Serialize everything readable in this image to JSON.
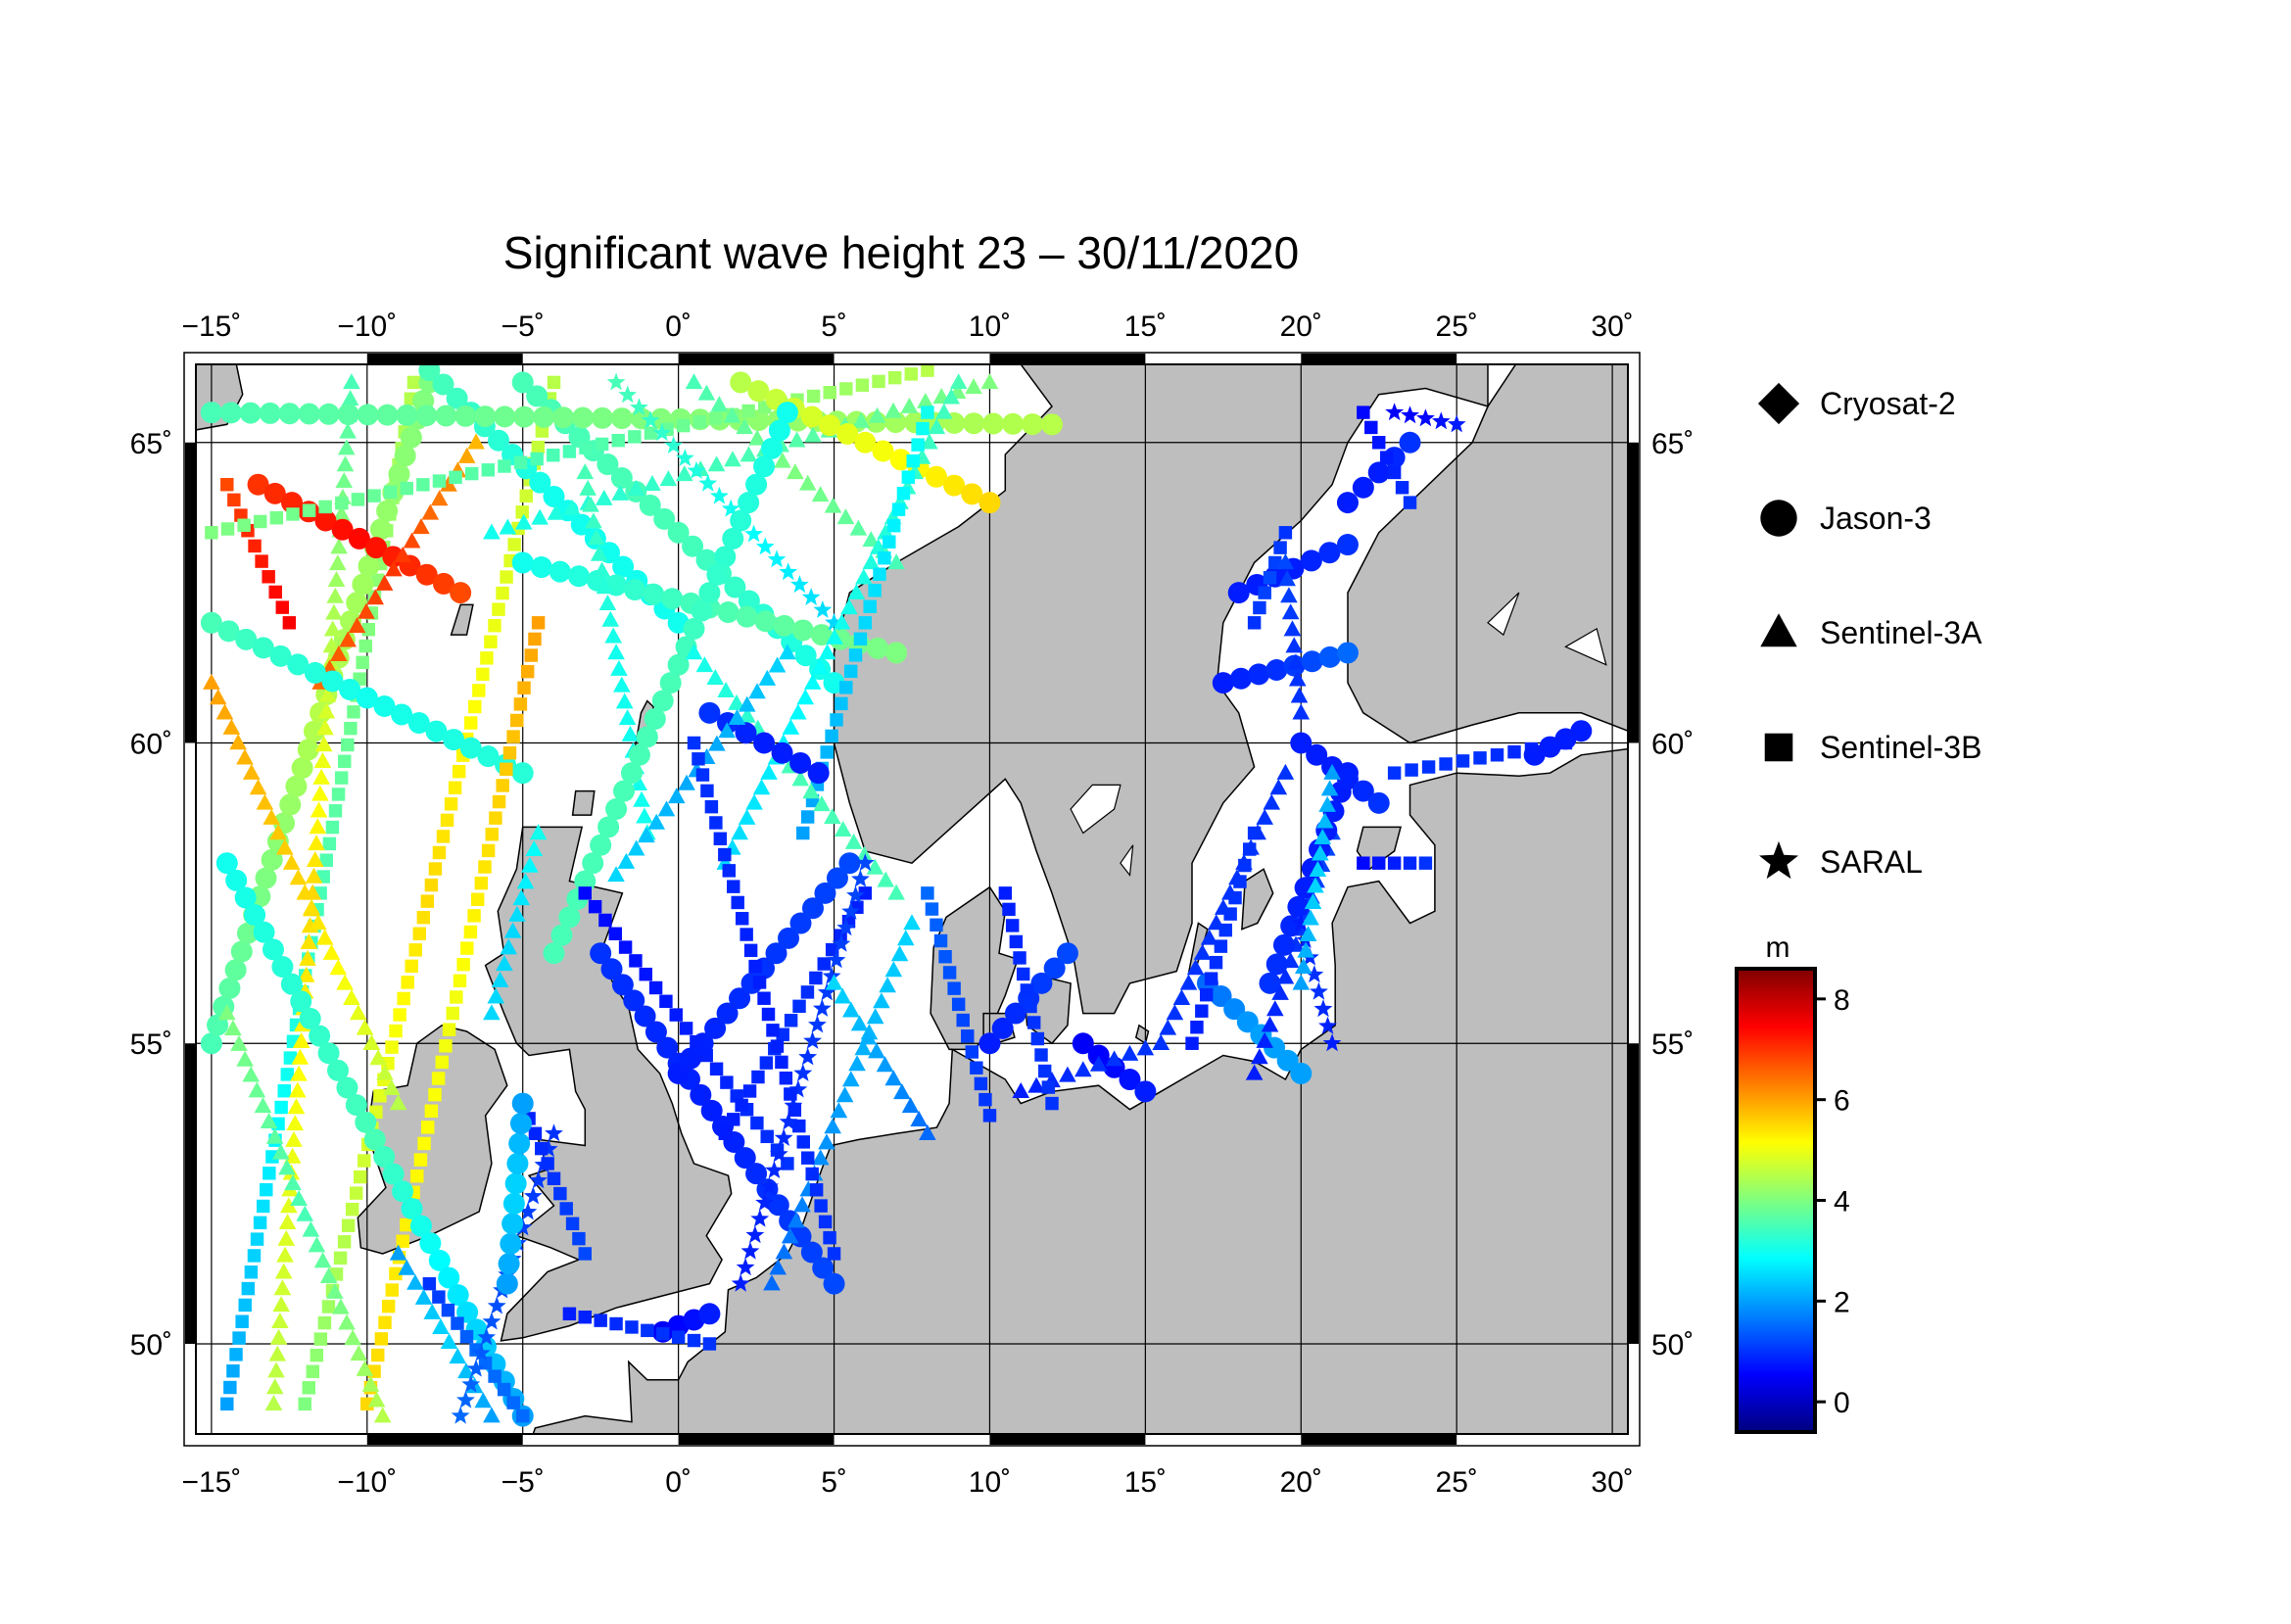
{
  "title": "Significant wave height 23 – 30/11/2020",
  "map": {
    "lon_range": [
      -15.5,
      30.5
    ],
    "lat_range": [
      48.5,
      66.3
    ],
    "lon_ticks": [
      -15,
      -10,
      -5,
      0,
      5,
      10,
      15,
      20,
      25,
      30
    ],
    "lon_tick_labels": [
      "−15˚",
      "−10˚",
      "−5˚",
      "0˚",
      "5˚",
      "10˚",
      "15˚",
      "20˚",
      "25˚",
      "30˚"
    ],
    "lat_ticks": [
      50,
      55,
      60,
      65
    ],
    "lat_tick_labels": [
      "50˚",
      "55˚",
      "60˚",
      "65˚"
    ],
    "land_color": "#bebebe",
    "water_color": "#ffffff"
  },
  "legend": {
    "items": [
      {
        "label": "Cryosat-2",
        "symbol": "diamond"
      },
      {
        "label": "Jason-3",
        "symbol": "circle"
      },
      {
        "label": "Sentinel-3A",
        "symbol": "triangle"
      },
      {
        "label": "Sentinel-3B",
        "symbol": "square"
      },
      {
        "label": "SARAL",
        "symbol": "star"
      }
    ]
  },
  "colorbar": {
    "unit": "m",
    "min": -0.6,
    "max": 8.6,
    "ticks": [
      0,
      2,
      4,
      6,
      8
    ],
    "tick_labels": [
      "0",
      "2",
      "4",
      "6",
      "8"
    ],
    "colors": [
      "#00007f",
      "#0000ff",
      "#007fff",
      "#00ffff",
      "#7fff7f",
      "#ffff00",
      "#ff7f00",
      "#ff0000",
      "#7f0000"
    ]
  },
  "chart_data": {
    "type": "scatter",
    "x_quantity": "longitude",
    "y_quantity": "latitude",
    "value_quantity": "significant wave height (m)",
    "tracks": [
      {
        "satellite": "Sentinel-3B",
        "start": [
          -14.5,
          49.0
        ],
        "end": [
          -8.5,
          66.0
        ],
        "hs": [
          2.0,
          3.5,
          4.5
        ]
      },
      {
        "satellite": "Jason-3",
        "start": [
          -15.0,
          55.0
        ],
        "end": [
          -8.0,
          66.0
        ],
        "hs": [
          3.5,
          4.5,
          4.0
        ]
      },
      {
        "satellite": "Sentinel-3A",
        "start": [
          -13.0,
          49.0
        ],
        "end": [
          -10.5,
          66.0
        ],
        "hs": [
          4.5,
          5.5,
          3.5
        ]
      },
      {
        "satellite": "Sentinel-3B",
        "start": [
          -12.0,
          49.0
        ],
        "end": [
          -4.0,
          66.0
        ],
        "hs": [
          4.0,
          5.5,
          4.5
        ]
      },
      {
        "satellite": "Sentinel-3B",
        "start": [
          -14.5,
          64.3
        ],
        "end": [
          -12.5,
          62.0
        ],
        "hs": [
          6.8,
          7.2,
          7.5
        ]
      },
      {
        "satellite": "Jason-3",
        "start": [
          -13.5,
          64.3
        ],
        "end": [
          -7.0,
          62.5
        ],
        "hs": [
          7.0,
          7.4,
          6.8
        ]
      },
      {
        "satellite": "Sentinel-3A",
        "start": [
          -11.5,
          61.0
        ],
        "end": [
          -6.5,
          65.0
        ],
        "hs": [
          6.5,
          7.0,
          5.8
        ]
      },
      {
        "satellite": "Sentinel-3A",
        "start": [
          -15.0,
          61.0
        ],
        "end": [
          -9.0,
          54.0
        ],
        "hs": [
          6.0,
          5.5,
          4.5
        ]
      },
      {
        "satellite": "Jason-3",
        "start": [
          -15.0,
          62.0
        ],
        "end": [
          -5.0,
          59.5
        ],
        "hs": [
          3.5,
          3.0,
          3.2
        ]
      },
      {
        "satellite": "Sentinel-3B",
        "start": [
          -10.0,
          49.0
        ],
        "end": [
          -4.5,
          62.0
        ],
        "hs": [
          5.5,
          5.0,
          6.0
        ]
      },
      {
        "satellite": "Jason-3",
        "start": [
          -14.5,
          58.0
        ],
        "end": [
          -5.0,
          48.8
        ],
        "hs": [
          3.0,
          3.5,
          2.0
        ]
      },
      {
        "satellite": "Sentinel-3A",
        "start": [
          -14.5,
          55.5
        ],
        "end": [
          -9.5,
          48.8
        ],
        "hs": [
          4.0,
          3.5,
          4.5
        ]
      },
      {
        "satellite": "Jason-3",
        "start": [
          -8.0,
          66.2
        ],
        "end": [
          0.0,
          62.0
        ],
        "hs": [
          3.5,
          3.0,
          3.0
        ]
      },
      {
        "satellite": "Jason-3",
        "start": [
          -5.0,
          66.0
        ],
        "end": [
          5.0,
          61.0
        ],
        "hs": [
          3.5,
          3.5,
          3.0
        ]
      },
      {
        "satellite": "Jason-3",
        "start": [
          -15.0,
          65.5
        ],
        "end": [
          12.0,
          65.3
        ],
        "hs": [
          3.5,
          4.0,
          4.5
        ]
      },
      {
        "satellite": "Sentinel-3B",
        "start": [
          -15.0,
          63.5
        ],
        "end": [
          8.0,
          66.2
        ],
        "hs": [
          4.0,
          3.5,
          4.5
        ]
      },
      {
        "satellite": "Sentinel-3A",
        "start": [
          -6.0,
          63.5
        ],
        "end": [
          10.0,
          66.0
        ],
        "hs": [
          3.0,
          3.5,
          4.0
        ]
      },
      {
        "satellite": "Jason-3",
        "start": [
          -5.0,
          63.0
        ],
        "end": [
          7.0,
          61.5
        ],
        "hs": [
          3.0,
          3.5,
          4.0
        ]
      },
      {
        "satellite": "SARAL",
        "start": [
          -2.0,
          66.0
        ],
        "end": [
          5.0,
          62.0
        ],
        "hs": [
          3.5,
          3.0,
          2.5
        ]
      },
      {
        "satellite": "Sentinel-3A",
        "start": [
          0.5,
          66.0
        ],
        "end": [
          7.0,
          63.0
        ],
        "hs": [
          3.5,
          4.0,
          3.5
        ]
      },
      {
        "satellite": "Jason-3",
        "start": [
          2.0,
          66.0
        ],
        "end": [
          10.0,
          64.0
        ],
        "hs": [
          4.5,
          5.0,
          5.5
        ]
      },
      {
        "satellite": "Sentinel-3A",
        "start": [
          -3.0,
          64.5
        ],
        "end": [
          -1.0,
          58.5
        ],
        "hs": [
          3.5,
          3.0,
          3.0
        ]
      },
      {
        "satellite": "Jason-3",
        "start": [
          -4.0,
          56.5
        ],
        "end": [
          3.5,
          65.5
        ],
        "hs": [
          3.5,
          3.5,
          3.0
        ]
      },
      {
        "satellite": "Sentinel-3A",
        "start": [
          1.5,
          58.0
        ],
        "end": [
          9.0,
          66.0
        ],
        "hs": [
          2.5,
          3.0,
          3.5
        ]
      },
      {
        "satellite": "Sentinel-3B",
        "start": [
          4.0,
          58.5
        ],
        "end": [
          8.0,
          65.5
        ],
        "hs": [
          2.0,
          2.5,
          3.0
        ]
      },
      {
        "satellite": "Sentinel-3A",
        "start": [
          0.5,
          61.5
        ],
        "end": [
          7.0,
          57.5
        ],
        "hs": [
          3.0,
          3.5,
          3.5
        ]
      },
      {
        "satellite": "Jason-3",
        "start": [
          1.0,
          60.5
        ],
        "end": [
          4.5,
          59.5
        ],
        "hs": [
          1.0,
          0.8,
          0.8
        ]
      },
      {
        "satellite": "Sentinel-3A",
        "start": [
          -2.0,
          57.8
        ],
        "end": [
          3.5,
          61.5
        ],
        "hs": [
          2.5,
          2.0,
          2.5
        ]
      },
      {
        "satellite": "Jason-3",
        "start": [
          -2.5,
          56.5
        ],
        "end": [
          5.0,
          51.0
        ],
        "hs": [
          1.0,
          0.8,
          1.2
        ]
      },
      {
        "satellite": "Jason-3",
        "start": [
          0.0,
          54.5
        ],
        "end": [
          5.5,
          58.0
        ],
        "hs": [
          0.8,
          1.0,
          1.2
        ]
      },
      {
        "satellite": "Sentinel-3B",
        "start": [
          -3.0,
          57.5
        ],
        "end": [
          3.5,
          53.0
        ],
        "hs": [
          0.6,
          0.8,
          1.0
        ]
      },
      {
        "satellite": "Sentinel-3B",
        "start": [
          1.5,
          53.5
        ],
        "end": [
          6.0,
          57.5
        ],
        "hs": [
          0.8,
          1.0,
          0.8
        ]
      },
      {
        "satellite": "Sentinel-3A",
        "start": [
          3.0,
          51.0
        ],
        "end": [
          7.5,
          57.0
        ],
        "hs": [
          1.5,
          2.0,
          2.5
        ]
      },
      {
        "satellite": "SARAL",
        "start": [
          2.0,
          51.0
        ],
        "end": [
          6.0,
          58.0
        ],
        "hs": [
          0.8,
          1.0,
          1.2
        ]
      },
      {
        "satellite": "Sentinel-3B",
        "start": [
          0.5,
          60.0
        ],
        "end": [
          5.0,
          51.5
        ],
        "hs": [
          1.0,
          0.8,
          1.0
        ]
      },
      {
        "satellite": "Sentinel-3A",
        "start": [
          5.0,
          56.0
        ],
        "end": [
          8.0,
          53.5
        ],
        "hs": [
          2.5,
          2.0,
          1.5
        ]
      },
      {
        "satellite": "Jason-3",
        "start": [
          -0.5,
          50.2
        ],
        "end": [
          1.0,
          50.5
        ],
        "hs": [
          0.5,
          0.6,
          0.8
        ]
      },
      {
        "satellite": "Sentinel-3B",
        "start": [
          -3.5,
          50.5
        ],
        "end": [
          1.0,
          50.0
        ],
        "hs": [
          0.8,
          1.0,
          1.0
        ]
      },
      {
        "satellite": "Sentinel-3B",
        "start": [
          -8.0,
          51.0
        ],
        "end": [
          -5.0,
          48.8
        ],
        "hs": [
          1.0,
          1.5,
          1.5
        ]
      },
      {
        "satellite": "Sentinel-3A",
        "start": [
          -9.0,
          51.5
        ],
        "end": [
          -6.0,
          48.8
        ],
        "hs": [
          2.0,
          2.5,
          2.0
        ]
      },
      {
        "satellite": "SARAL",
        "start": [
          -7.0,
          48.8
        ],
        "end": [
          -4.0,
          53.5
        ],
        "hs": [
          1.5,
          1.2,
          1.0
        ]
      },
      {
        "satellite": "Sentinel-3A",
        "start": [
          -6.0,
          55.5
        ],
        "end": [
          -4.5,
          58.5
        ],
        "hs": [
          2.5,
          2.5,
          3.0
        ]
      },
      {
        "satellite": "Sentinel-3B",
        "start": [
          -5.0,
          54.0
        ],
        "end": [
          -3.0,
          51.5
        ],
        "hs": [
          0.8,
          1.0,
          1.2
        ]
      },
      {
        "satellite": "Jason-3",
        "start": [
          -5.5,
          51.0
        ],
        "end": [
          -5.0,
          54.0
        ],
        "hs": [
          2.0,
          2.5,
          2.0
        ]
      },
      {
        "satellite": "Sentinel-3B",
        "start": [
          8.0,
          57.5
        ],
        "end": [
          10.0,
          53.8
        ],
        "hs": [
          1.5,
          1.2,
          1.0
        ]
      },
      {
        "satellite": "Jason-3",
        "start": [
          10.0,
          55.0
        ],
        "end": [
          12.5,
          56.5
        ],
        "hs": [
          0.8,
          1.0,
          1.2
        ]
      },
      {
        "satellite": "Jason-3",
        "start": [
          13.0,
          55.0
        ],
        "end": [
          15.0,
          54.2
        ],
        "hs": [
          0.5,
          0.6,
          0.8
        ]
      },
      {
        "satellite": "Sentinel-3A",
        "start": [
          11.0,
          54.2
        ],
        "end": [
          15.5,
          55.0
        ],
        "hs": [
          0.8,
          1.0,
          1.0
        ]
      },
      {
        "satellite": "Sentinel-3B",
        "start": [
          10.5,
          57.5
        ],
        "end": [
          12.0,
          54.0
        ],
        "hs": [
          0.8,
          1.0,
          1.0
        ]
      },
      {
        "satellite": "Jason-3",
        "start": [
          17.0,
          56.0
        ],
        "end": [
          20.0,
          54.5
        ],
        "hs": [
          1.5,
          2.0,
          2.0
        ]
      },
      {
        "satellite": "Sentinel-3A",
        "start": [
          15.5,
          55.0
        ],
        "end": [
          19.5,
          59.5
        ],
        "hs": [
          1.0,
          1.0,
          1.0
        ]
      },
      {
        "satellite": "Sentinel-3B",
        "start": [
          16.5,
          55.0
        ],
        "end": [
          18.5,
          58.5
        ],
        "hs": [
          0.8,
          1.0,
          1.0
        ]
      },
      {
        "satellite": "Sentinel-3A",
        "start": [
          18.5,
          54.5
        ],
        "end": [
          21.0,
          58.5
        ],
        "hs": [
          0.8,
          1.0,
          1.2
        ]
      },
      {
        "satellite": "Jason-3",
        "start": [
          19.0,
          56.0
        ],
        "end": [
          21.5,
          59.5
        ],
        "hs": [
          1.0,
          0.8,
          0.8
        ]
      },
      {
        "satellite": "SARAL",
        "start": [
          20.0,
          57.0
        ],
        "end": [
          21.0,
          55.0
        ],
        "hs": [
          0.8,
          1.0,
          0.8
        ]
      },
      {
        "satellite": "Jason-3",
        "start": [
          20.0,
          60.0
        ],
        "end": [
          22.5,
          59.0
        ],
        "hs": [
          0.8,
          0.8,
          1.0
        ]
      },
      {
        "satellite": "Sentinel-3A",
        "start": [
          21.0,
          59.5
        ],
        "end": [
          20.0,
          56.0
        ],
        "hs": [
          2.0,
          2.5,
          2.0
        ]
      },
      {
        "satellite": "Sentinel-3B",
        "start": [
          22.0,
          58.0
        ],
        "end": [
          24.0,
          58.0
        ],
        "hs": [
          0.6,
          0.8,
          1.0
        ]
      },
      {
        "satellite": "Sentinel-3B",
        "start": [
          23.0,
          59.5
        ],
        "end": [
          28.5,
          60.0
        ],
        "hs": [
          1.0,
          1.0,
          0.8
        ]
      },
      {
        "satellite": "Jason-3",
        "start": [
          27.5,
          59.8
        ],
        "end": [
          29.0,
          60.2
        ],
        "hs": [
          0.8,
          0.8,
          0.8
        ]
      },
      {
        "satellite": "Jason-3",
        "start": [
          17.5,
          61.0
        ],
        "end": [
          21.5,
          61.5
        ],
        "hs": [
          0.8,
          1.0,
          1.5
        ]
      },
      {
        "satellite": "Jason-3",
        "start": [
          18.0,
          62.5
        ],
        "end": [
          21.5,
          63.3
        ],
        "hs": [
          0.8,
          0.8,
          1.0
        ]
      },
      {
        "satellite": "Sentinel-3B",
        "start": [
          18.5,
          62.0
        ],
        "end": [
          19.5,
          63.5
        ],
        "hs": [
          1.0,
          1.2,
          1.0
        ]
      },
      {
        "satellite": "Sentinel-3A",
        "start": [
          20.0,
          60.5
        ],
        "end": [
          19.5,
          63.0
        ],
        "hs": [
          1.0,
          1.0,
          1.2
        ]
      },
      {
        "satellite": "Jason-3",
        "start": [
          21.5,
          64.0
        ],
        "end": [
          23.5,
          65.0
        ],
        "hs": [
          0.8,
          0.8,
          1.0
        ]
      },
      {
        "satellite": "Sentinel-3B",
        "start": [
          22.0,
          65.5
        ],
        "end": [
          23.5,
          64.0
        ],
        "hs": [
          0.6,
          0.8,
          1.0
        ]
      },
      {
        "satellite": "SARAL",
        "start": [
          23.0,
          65.5
        ],
        "end": [
          25.0,
          65.3
        ],
        "hs": [
          0.5,
          0.6,
          0.8
        ]
      }
    ]
  }
}
